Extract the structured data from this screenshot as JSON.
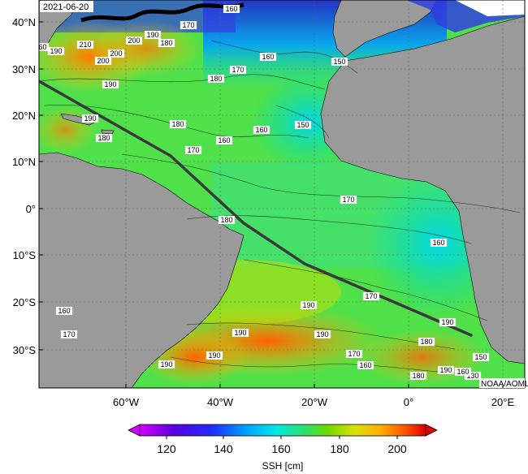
{
  "date_label": "2021-06-20",
  "credit": "NOAA/AOML",
  "lat_ticks": [
    "40°N",
    "30°N",
    "20°N",
    "10°N",
    "0°",
    "10°S",
    "20°S",
    "30°S"
  ],
  "lon_ticks": [
    "60°W",
    "40°W",
    "20°W",
    "0°",
    "20°E"
  ],
  "colorbar": {
    "label": "SSH [cm]",
    "ticks": [
      "120",
      "140",
      "160",
      "180",
      "200"
    ]
  },
  "contour_labels": [
    "210",
    "200",
    "200",
    "190",
    "190",
    "180",
    "170",
    "160",
    "160",
    "150",
    "190",
    "180",
    "170",
    "160",
    "150",
    "190",
    "180",
    "160",
    "170",
    "180",
    "180",
    "170",
    "170",
    "160",
    "160",
    "170",
    "190",
    "190",
    "190",
    "190",
    "190",
    "180",
    "190",
    "160",
    "150",
    "130",
    "160",
    "180",
    "170",
    "190",
    "200",
    "160"
  ],
  "colors": {
    "land": "#9a9a9a",
    "track": "#3a3a3a",
    "grid": "#606060"
  }
}
